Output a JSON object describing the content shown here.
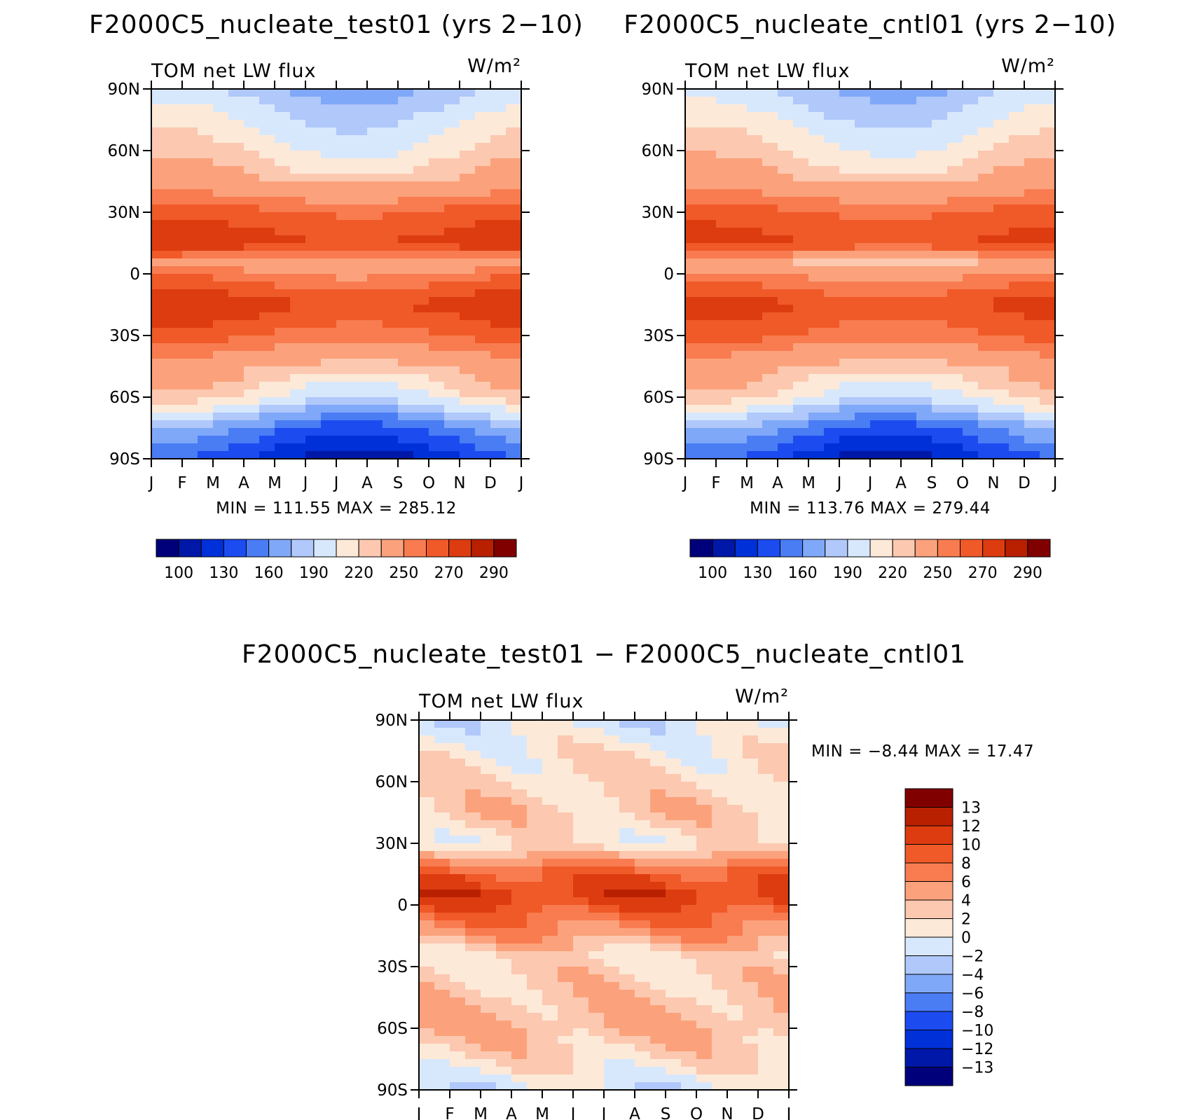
{
  "chart_data": [
    {
      "type": "heatmap",
      "title": "F2000C5_nucleate_test01 (yrs 2−10)",
      "left_label": "TOM net LW flux",
      "right_label": "W/m²",
      "x_ticks": [
        "J",
        "F",
        "M",
        "A",
        "M",
        "J",
        "J",
        "A",
        "S",
        "O",
        "N",
        "D",
        "J"
      ],
      "y_ticks": [
        "90N",
        "60N",
        "30N",
        "0",
        "30S",
        "60S",
        "90S"
      ],
      "stats": "MIN = 111.55 MAX = 285.12",
      "min": 111.55,
      "max": 285.12,
      "colorbar": {
        "orientation": "horizontal",
        "labels": [
          "100",
          "130",
          "160",
          "190",
          "220",
          "250",
          "270",
          "290"
        ],
        "colors": [
          "#00007a",
          "#0018a8",
          "#0030d8",
          "#1c4cf0",
          "#4a7cf4",
          "#80a8f8",
          "#b0c8fa",
          "#d8e8fc",
          "#fde9d8",
          "#fcc8b0",
          "#fba27c",
          "#f87c50",
          "#f05a28",
          "#dc3c10",
          "#b82000",
          "#800000"
        ]
      },
      "zonal_profile": [
        {
          "lat": 90,
          "value": 175
        },
        {
          "lat": 75,
          "value": 195
        },
        {
          "lat": 60,
          "value": 210
        },
        {
          "lat": 45,
          "value": 232
        },
        {
          "lat": 30,
          "value": 258
        },
        {
          "lat": 15,
          "value": 270
        },
        {
          "lat": 5,
          "value": 235
        },
        {
          "lat": 0,
          "value": 248
        },
        {
          "lat": -15,
          "value": 270
        },
        {
          "lat": -30,
          "value": 255
        },
        {
          "lat": -45,
          "value": 232
        },
        {
          "lat": -60,
          "value": 205
        },
        {
          "lat": -75,
          "value": 150
        },
        {
          "lat": -90,
          "value": 118
        }
      ]
    },
    {
      "type": "heatmap",
      "title": "F2000C5_nucleate_cntl01 (yrs 2−10)",
      "left_label": "TOM net LW flux",
      "right_label": "W/m²",
      "x_ticks": [
        "J",
        "F",
        "M",
        "A",
        "M",
        "J",
        "J",
        "A",
        "S",
        "O",
        "N",
        "D",
        "J"
      ],
      "y_ticks": [
        "90N",
        "60N",
        "30N",
        "0",
        "30S",
        "60S",
        "90S"
      ],
      "stats": "MIN = 113.76 MAX = 279.44",
      "min": 113.76,
      "max": 279.44,
      "colorbar": {
        "orientation": "horizontal",
        "labels": [
          "100",
          "130",
          "160",
          "190",
          "220",
          "250",
          "270",
          "290"
        ],
        "colors": [
          "#00007a",
          "#0018a8",
          "#0030d8",
          "#1c4cf0",
          "#4a7cf4",
          "#80a8f8",
          "#b0c8fa",
          "#d8e8fc",
          "#fde9d8",
          "#fcc8b0",
          "#fba27c",
          "#f87c50",
          "#f05a28",
          "#dc3c10",
          "#b82000",
          "#800000"
        ]
      },
      "zonal_profile": [
        {
          "lat": 90,
          "value": 178
        },
        {
          "lat": 75,
          "value": 196
        },
        {
          "lat": 60,
          "value": 212
        },
        {
          "lat": 45,
          "value": 233
        },
        {
          "lat": 30,
          "value": 257
        },
        {
          "lat": 15,
          "value": 266
        },
        {
          "lat": 5,
          "value": 228
        },
        {
          "lat": 0,
          "value": 244
        },
        {
          "lat": -15,
          "value": 266
        },
        {
          "lat": -30,
          "value": 254
        },
        {
          "lat": -45,
          "value": 231
        },
        {
          "lat": -60,
          "value": 205
        },
        {
          "lat": -75,
          "value": 152
        },
        {
          "lat": -90,
          "value": 120
        }
      ]
    },
    {
      "type": "heatmap",
      "title": "F2000C5_nucleate_test01 − F2000C5_nucleate_cntl01",
      "left_label": "TOM net LW flux",
      "right_label": "W/m²",
      "x_ticks": [
        "J",
        "F",
        "M",
        "A",
        "M",
        "J",
        "J",
        "A",
        "S",
        "O",
        "N",
        "D",
        "J"
      ],
      "y_ticks": [
        "90N",
        "60N",
        "30N",
        "0",
        "30S",
        "60S",
        "90S"
      ],
      "stats": "MIN =   −8.44 MAX =   17.47",
      "min": -8.44,
      "max": 17.47,
      "colorbar": {
        "orientation": "vertical",
        "labels": [
          "13",
          "12",
          "10",
          "8",
          "6",
          "4",
          "2",
          "0",
          "−2",
          "−4",
          "−6",
          "−8",
          "−10",
          "−12",
          "−13"
        ],
        "colors": [
          "#800000",
          "#b82000",
          "#dc3c10",
          "#f05a28",
          "#f87c50",
          "#fba27c",
          "#fcc8b0",
          "#fde9d8",
          "#d8e8fc",
          "#b0c8fa",
          "#80a8f8",
          "#4a7cf4",
          "#1c4cf0",
          "#0030d8",
          "#0018a8",
          "#00007a"
        ]
      },
      "zonal_profile": [
        {
          "lat": 90,
          "value": -1
        },
        {
          "lat": 75,
          "value": 1
        },
        {
          "lat": 60,
          "value": 2
        },
        {
          "lat": 45,
          "value": 3
        },
        {
          "lat": 30,
          "value": 1
        },
        {
          "lat": 15,
          "value": 9
        },
        {
          "lat": 5,
          "value": 11
        },
        {
          "lat": -10,
          "value": 7
        },
        {
          "lat": -25,
          "value": 2
        },
        {
          "lat": -40,
          "value": 3
        },
        {
          "lat": -60,
          "value": 4
        },
        {
          "lat": -75,
          "value": 2
        },
        {
          "lat": -90,
          "value": -1
        }
      ]
    }
  ]
}
